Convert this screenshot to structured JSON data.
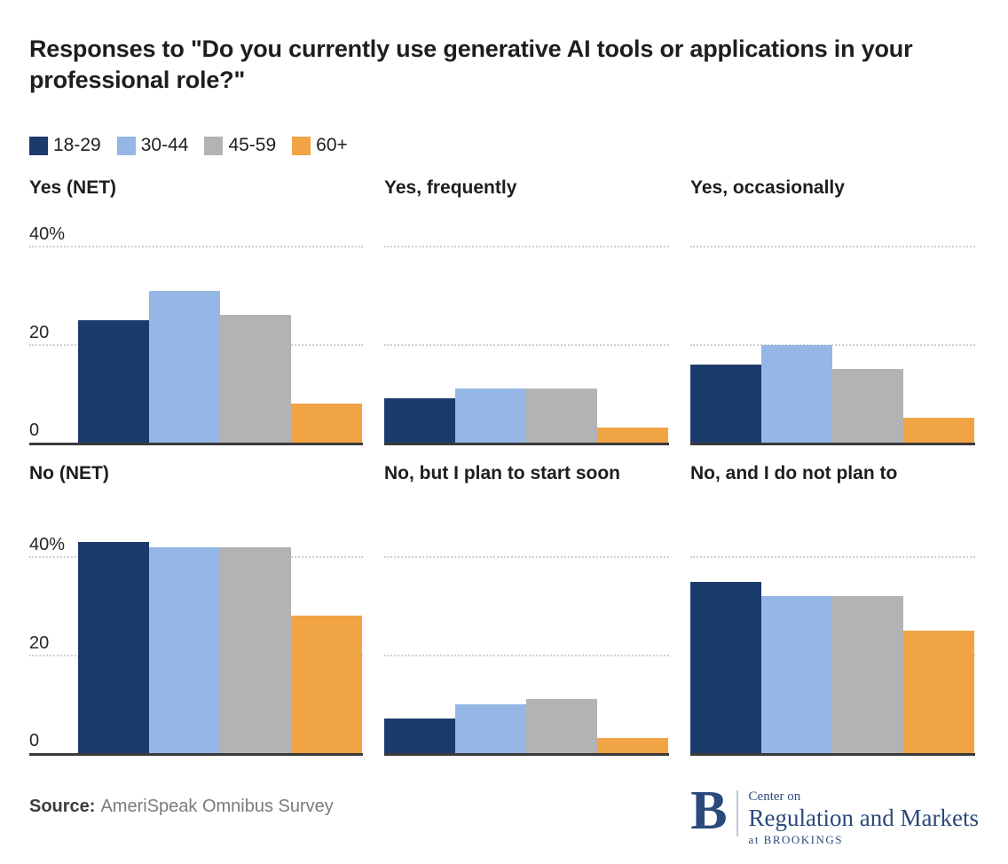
{
  "title": "Responses to \"Do you currently use generative AI tools or applications in your professional role?\"",
  "source": {
    "label": "Source:",
    "text": "AmeriSpeak Omnibus Survey"
  },
  "logo": {
    "letter": "B",
    "line1": "Center on",
    "line2": "Regulation and Markets",
    "line3": "at BROOKINGS",
    "color": "#2b4a7c"
  },
  "chart_data": {
    "type": "bar",
    "layout": "small-multiples (2 rows x 3 columns)",
    "unit": "%",
    "categories": [
      "18-29",
      "30-44",
      "45-59",
      "60+"
    ],
    "colors": [
      "#1c3b6d",
      "#94b7e5",
      "#b3b3b3",
      "#f0a443"
    ],
    "y_axis": {
      "ylim": [
        0,
        44
      ],
      "gridlines": [
        20,
        40
      ],
      "tick_labels": [
        "40%",
        "20",
        "0"
      ],
      "grid_style": "dotted"
    },
    "legend_position": "top-left",
    "panels": [
      {
        "title": "Yes (NET)",
        "values": [
          25,
          31,
          26,
          8
        ]
      },
      {
        "title": "Yes, frequently",
        "values": [
          9,
          11,
          11,
          3
        ]
      },
      {
        "title": "Yes, occasionally",
        "values": [
          16,
          20,
          15,
          5
        ]
      },
      {
        "title": "No (NET)",
        "values": [
          43,
          42,
          42,
          28
        ]
      },
      {
        "title": "No, but I plan to start soon",
        "values": [
          7,
          10,
          11,
          3
        ]
      },
      {
        "title": "No, and I do not plan to",
        "values": [
          35,
          32,
          32,
          25
        ]
      }
    ]
  }
}
